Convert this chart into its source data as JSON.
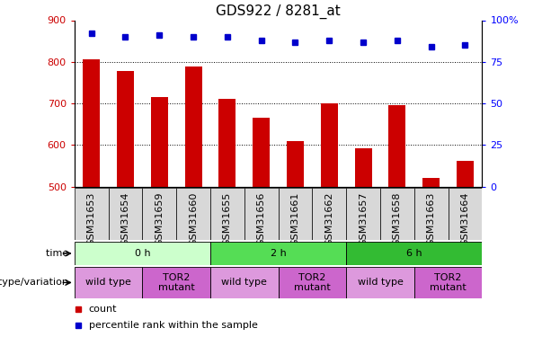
{
  "title": "GDS922 / 8281_at",
  "samples": [
    "GSM31653",
    "GSM31654",
    "GSM31659",
    "GSM31660",
    "GSM31655",
    "GSM31656",
    "GSM31661",
    "GSM31662",
    "GSM31657",
    "GSM31658",
    "GSM31663",
    "GSM31664"
  ],
  "counts": [
    805,
    778,
    715,
    788,
    712,
    665,
    610,
    700,
    592,
    697,
    522,
    562
  ],
  "percentiles": [
    92,
    90,
    91,
    90,
    90,
    88,
    87,
    88,
    87,
    88,
    84,
    85
  ],
  "ylim_left": [
    500,
    900
  ],
  "ylim_right": [
    0,
    100
  ],
  "yticks_left": [
    500,
    600,
    700,
    800,
    900
  ],
  "yticks_right": [
    0,
    25,
    50,
    75,
    100
  ],
  "bar_color": "#CC0000",
  "dot_color": "#0000CC",
  "time_groups": [
    {
      "label": "0 h",
      "start": 0,
      "end": 4,
      "color": "#CCFFCC"
    },
    {
      "label": "2 h",
      "start": 4,
      "end": 8,
      "color": "#55DD55"
    },
    {
      "label": "6 h",
      "start": 8,
      "end": 12,
      "color": "#33BB33"
    }
  ],
  "genotype_groups": [
    {
      "label": "wild type",
      "start": 0,
      "end": 2,
      "color": "#DD99DD"
    },
    {
      "label": "TOR2\nmutant",
      "start": 2,
      "end": 4,
      "color": "#CC66CC"
    },
    {
      "label": "wild type",
      "start": 4,
      "end": 6,
      "color": "#DD99DD"
    },
    {
      "label": "TOR2\nmutant",
      "start": 6,
      "end": 8,
      "color": "#CC66CC"
    },
    {
      "label": "wild type",
      "start": 8,
      "end": 10,
      "color": "#DD99DD"
    },
    {
      "label": "TOR2\nmutant",
      "start": 10,
      "end": 12,
      "color": "#CC66CC"
    }
  ],
  "legend_count_color": "#CC0000",
  "legend_dot_color": "#0000CC",
  "title_fontsize": 11,
  "tick_fontsize": 8,
  "label_fontsize": 8
}
